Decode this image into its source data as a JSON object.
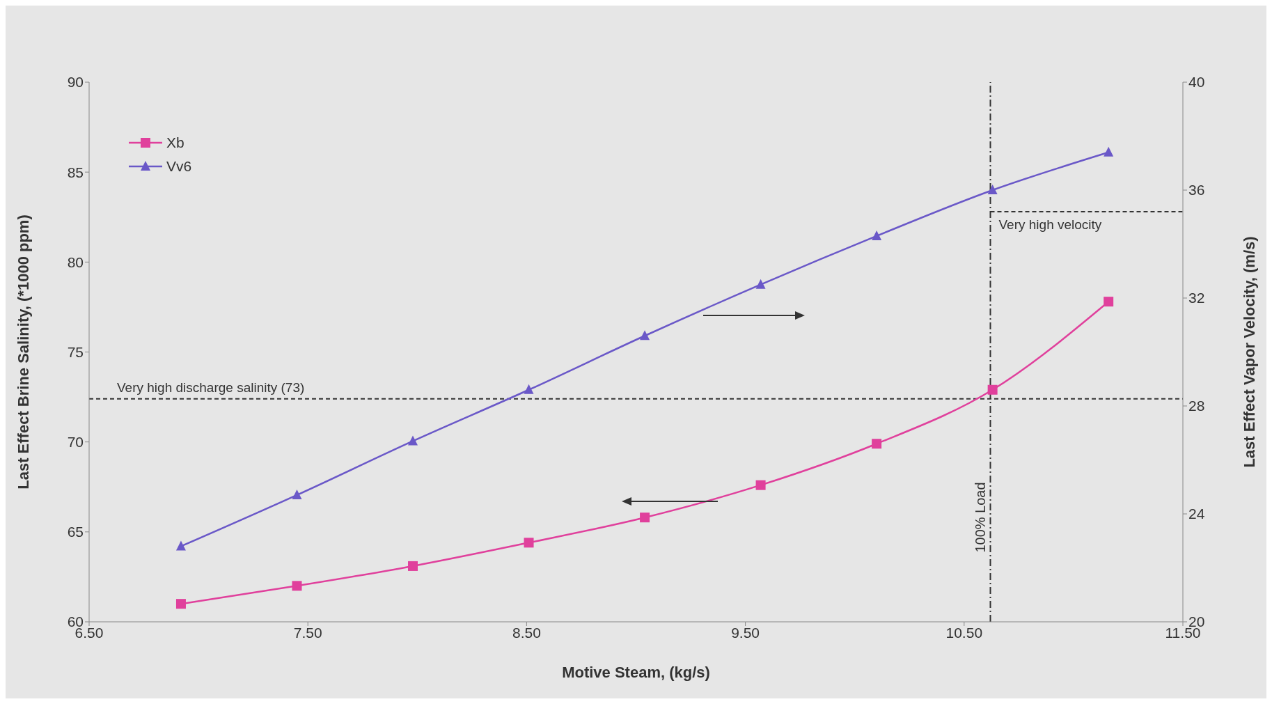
{
  "chart_data": {
    "type": "line",
    "xlabel": "Motive Steam, (kg/s)",
    "ylabel": "Last Effect Brine Salinity, (*1000 ppm)",
    "y2label": "Last Effect Vapor Velocity, (m/s)",
    "x": [
      6.92,
      7.45,
      7.98,
      8.51,
      9.04,
      9.57,
      10.1,
      10.63,
      11.16
    ],
    "series": [
      {
        "name": "Xb",
        "color": "#e0409c",
        "marker": "square",
        "values": [
          61.0,
          62.0,
          63.1,
          64.4,
          65.8,
          67.6,
          69.9,
          72.9,
          77.8
        ]
      },
      {
        "name": "Vv6",
        "color": "#6a58c8",
        "marker": "triangle",
        "axis": "y2",
        "values": [
          22.8,
          24.7,
          26.7,
          28.6,
          30.6,
          32.5,
          34.3,
          36.0,
          37.4
        ]
      }
    ],
    "xlim": [
      6.5,
      11.5
    ],
    "xticks": [
      {
        "value": 6.5,
        "label": "6.50"
      },
      {
        "value": 7.5,
        "label": "7.50"
      },
      {
        "value": 8.5,
        "label": "8.50"
      },
      {
        "value": 9.5,
        "label": "9.50"
      },
      {
        "value": 10.5,
        "label": "10.50"
      },
      {
        "value": 11.5,
        "label": "11.50"
      }
    ],
    "ylim": [
      60,
      90
    ],
    "yticks": [
      60,
      65,
      70,
      75,
      80,
      85,
      90
    ],
    "y2lim": [
      20,
      40
    ],
    "y2ticks": [
      20,
      24,
      28,
      32,
      36,
      40
    ],
    "ref_lines": [
      {
        "axis": "y",
        "value": 72.4,
        "label": "Very high discharge salinity (73)",
        "line_style": "dashed",
        "color": "#333333"
      },
      {
        "axis": "x",
        "value": 10.62,
        "label": "100% Load",
        "line_style": "dashdot",
        "color": "#333333"
      },
      {
        "axis": "y2",
        "value": 35.2,
        "label": "Very high velocity",
        "line_style": "dashed",
        "color": "#333333"
      }
    ],
    "legend": "top left",
    "line_style": "solid"
  }
}
